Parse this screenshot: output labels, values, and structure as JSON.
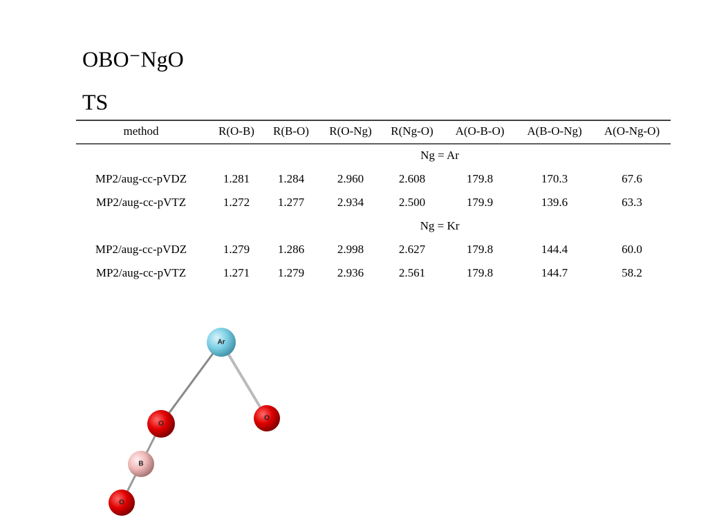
{
  "title": "OBO⁻NgO",
  "subtitle": "TS",
  "table": {
    "header": [
      "method",
      "R(O-B)",
      "R(B-O)",
      "R(O-Ng)",
      "R(Ng-O)",
      "A(O-B-O)",
      "A(B-O-Ng)",
      "A(O-Ng-O)"
    ],
    "groups": [
      {
        "label": "Ng = Ar",
        "rows": [
          [
            "MP2/aug-cc-pVDZ",
            "1.281",
            "1.284",
            "2.960",
            "2.608",
            "179.8",
            "170.3",
            "67.6"
          ],
          [
            "MP2/aug-cc-pVTZ",
            "1.272",
            "1.277",
            "2.934",
            "2.500",
            "179.9",
            "139.6",
            "63.3"
          ]
        ]
      },
      {
        "label": "Ng = Kr",
        "rows": [
          [
            "MP2/aug-cc-pVDZ",
            "1.279",
            "1.286",
            "2.998",
            "2.627",
            "179.8",
            "144.4",
            "60.0"
          ],
          [
            "MP2/aug-cc-pVTZ",
            "1.271",
            "1.279",
            "2.936",
            "2.561",
            "179.8",
            "144.7",
            "58.2"
          ]
        ]
      }
    ],
    "highlight": {
      "color": "#1a1acc",
      "cells": [
        "0.0.6",
        "0.1.6"
      ]
    }
  },
  "molecule": {
    "atoms": [
      "Ar",
      "O",
      "O",
      "B",
      "O"
    ]
  }
}
